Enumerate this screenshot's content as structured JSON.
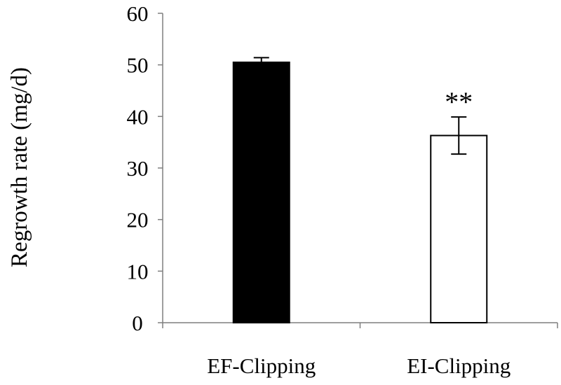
{
  "chart_data": {
    "type": "bar",
    "categories": [
      "EF-Clipping",
      "EI-Clipping"
    ],
    "values": [
      50.5,
      36.3
    ],
    "error_bars": [
      0.9,
      3.6
    ],
    "bar_colors": [
      "#000000",
      "#ffffff"
    ],
    "bar_edge_color": "#000000",
    "annotations": [
      "",
      "**"
    ],
    "title": "",
    "xlabel": "",
    "ylabel": "Regrowth rate (mg/d)",
    "ylim": [
      0,
      60
    ],
    "yticks": [
      "0",
      "10",
      "20",
      "30",
      "40",
      "50",
      "60"
    ],
    "grid": false,
    "legend": "none"
  }
}
